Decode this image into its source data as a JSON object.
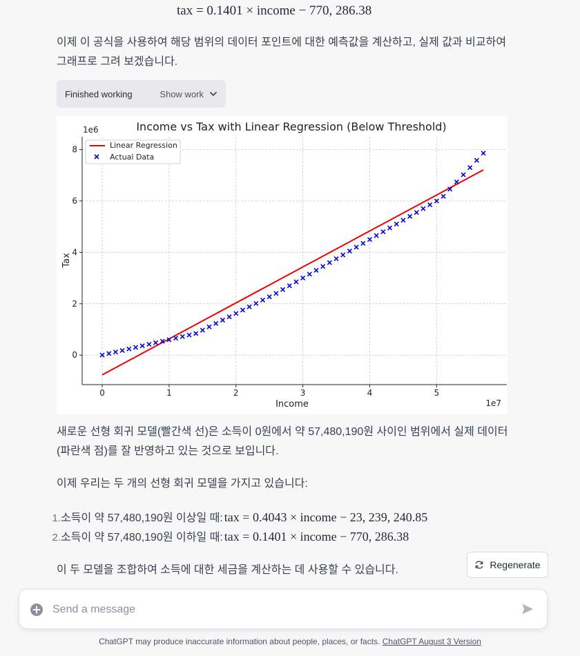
{
  "message": {
    "formula_top": "tax = 0.1401 × income − 770, 286.38",
    "para1": "이제 이 공식을 사용하여 해당 범위의 데이터 포인트에 대한 예측값을 계산하고, 실제 값과 비교하여 그래프로 그려 보겠습니다.",
    "status_label": "Finished working",
    "show_work_label": "Show work",
    "para2": "새로운 선형 회귀 모델(빨간색 선)은 소득이 0원에서 약 57,480,190원 사이인 범위에서 실제 데이터(파란색 점)를 잘 반영하고 있는 것으로 보입니다.",
    "para3": "이제 우리는 두 개의 선형 회귀 모델을 가지고 있습니다:",
    "list": [
      {
        "num": "1.",
        "text": "소득이 약 57,480,190원 이상일 때: ",
        "formula": "tax = 0.4043 × income − 23, 239, 240.85"
      },
      {
        "num": "2.",
        "text": "소득이 약 57,480,190원 이하일 때: ",
        "formula": "tax = 0.1401 × income − 770, 286.38"
      }
    ],
    "para4": "이 두 모델을 조합하여 소득에 대한 세금을 계산하는 데 사용할 수 있습니다."
  },
  "regenerate_label": "Regenerate",
  "composer": {
    "placeholder": "Send a message",
    "value": ""
  },
  "footer": {
    "text": "ChatGPT may produce inaccurate information about people, places, or facts. ",
    "link": "ChatGPT August 3 Version"
  },
  "colors": {
    "accent_line": "#ee0000",
    "points": "#0000dd",
    "background": "#f7f7f8"
  },
  "icons": {
    "status": "chevron-down-icon",
    "regenerate": "refresh-icon",
    "composer_left": "plus-circle-icon",
    "composer_send": "send-icon"
  },
  "chart_data": {
    "type": "scatter",
    "title": "Income vs Tax with Linear Regression (Below Threshold)",
    "xlabel": "Income",
    "ylabel": "Tax",
    "x_multiplier": "1e7",
    "y_multiplier": "1e6",
    "xlim": [
      -0.3,
      6.05
    ],
    "ylim": [
      -1.15,
      8.5
    ],
    "xticks": [
      0,
      1,
      2,
      3,
      4,
      5
    ],
    "yticks": [
      0,
      2,
      4,
      6,
      8
    ],
    "grid": true,
    "legend_position": "top-left",
    "series": [
      {
        "name": "Linear Regression",
        "kind": "line",
        "color": "#ee0000",
        "x": [
          0,
          5.7
        ],
        "y": [
          -0.77,
          7.21
        ]
      },
      {
        "name": "Actual Data",
        "kind": "scatter",
        "marker": "x",
        "color": "#0000dd",
        "x": [
          0,
          0.1,
          0.2,
          0.3,
          0.4,
          0.5,
          0.6,
          0.7,
          0.8,
          0.9,
          1.0,
          1.1,
          1.2,
          1.3,
          1.4,
          1.5,
          1.6,
          1.7,
          1.8,
          1.9,
          2.0,
          2.1,
          2.2,
          2.3,
          2.4,
          2.5,
          2.6,
          2.7,
          2.8,
          2.9,
          3.0,
          3.1,
          3.2,
          3.3,
          3.4,
          3.5,
          3.6,
          3.7,
          3.8,
          3.9,
          4.0,
          4.1,
          4.2,
          4.3,
          4.4,
          4.5,
          4.6,
          4.7,
          4.8,
          4.9,
          5.0,
          5.1,
          5.2,
          5.3,
          5.4,
          5.5,
          5.6,
          5.7
        ],
        "y": [
          0.0,
          0.06,
          0.12,
          0.18,
          0.24,
          0.3,
          0.36,
          0.42,
          0.48,
          0.54,
          0.6,
          0.66,
          0.72,
          0.78,
          0.84,
          0.97,
          1.1,
          1.23,
          1.36,
          1.49,
          1.62,
          1.75,
          1.88,
          2.01,
          2.14,
          2.27,
          2.4,
          2.55,
          2.7,
          2.85,
          3.0,
          3.15,
          3.3,
          3.45,
          3.6,
          3.75,
          3.9,
          4.05,
          4.2,
          4.35,
          4.5,
          4.65,
          4.8,
          4.95,
          5.1,
          5.25,
          5.4,
          5.55,
          5.7,
          5.85,
          6.0,
          6.18,
          6.46,
          6.74,
          7.02,
          7.3,
          7.58,
          7.86
        ]
      }
    ]
  }
}
